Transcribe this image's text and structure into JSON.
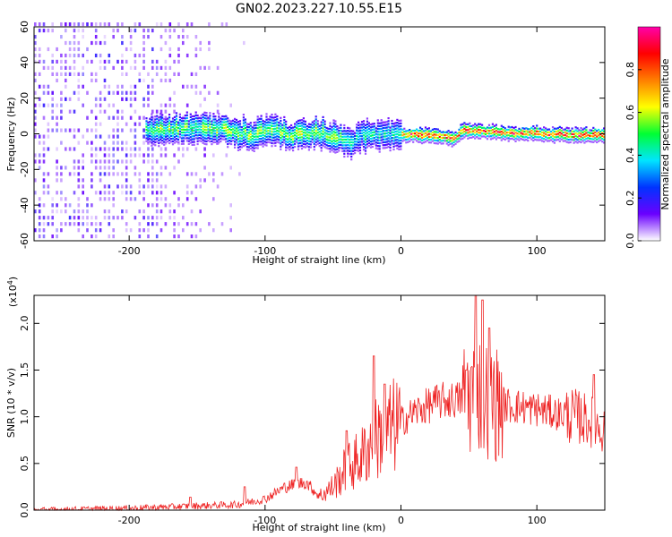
{
  "title": "GN02.2023.227.10.55.E15",
  "chart_data": [
    {
      "type": "heatmap",
      "xlabel": "Height of straight line (km)",
      "ylabel": "Frequency (Hz)",
      "xlim": [
        -270,
        150
      ],
      "ylim": [
        -60,
        60
      ],
      "x_ticks": [
        -200,
        -100,
        0,
        100
      ],
      "y_ticks": [
        -60,
        -40,
        -20,
        0,
        20,
        40,
        60
      ],
      "colorbar": {
        "label": "Normalized spectral amplitude",
        "range": [
          0,
          1
        ],
        "ticks": [
          0.0,
          0.2,
          0.4,
          0.6,
          0.8
        ],
        "colormap": [
          "#ffffff",
          "#6a00ff",
          "#0033ff",
          "#00e5ff",
          "#00ff33",
          "#ffff00",
          "#ff7f00",
          "#ff0000",
          "#ff00aa"
        ]
      },
      "ridge": {
        "x": [
          -185,
          -150,
          -130,
          -110,
          -100,
          -80,
          -60,
          -45,
          -40,
          -30,
          -10,
          0,
          25,
          40,
          45,
          60,
          80,
          100,
          120,
          150
        ],
        "y": [
          2,
          4,
          3,
          0,
          3,
          0,
          1,
          -2,
          -5,
          0,
          0,
          0,
          0,
          -2,
          3,
          2,
          1,
          1,
          0,
          0
        ],
        "noise_floor_x_end": -115
      }
    },
    {
      "type": "line",
      "xlabel": "Height of straight line (km)",
      "ylabel": "SNR (10 * v/v)",
      "y_multiplier": "(x10",
      "y_multiplier_exp": "4",
      "y_multiplier_close": ")",
      "xlim": [
        -270,
        150
      ],
      "ylim": [
        0,
        2.3
      ],
      "x_ticks": [
        -200,
        -100,
        0,
        100
      ],
      "y_ticks": [
        0.0,
        0.5,
        1.0,
        1.5,
        2.0
      ],
      "line_color": "#ee2222",
      "envelope": {
        "x": [
          -270,
          -200,
          -160,
          -120,
          -100,
          -85,
          -70,
          -60,
          -50,
          -40,
          -30,
          -20,
          -10,
          0,
          10,
          20,
          30,
          40,
          48,
          55,
          62,
          70,
          80,
          90,
          100,
          110,
          120,
          130,
          140,
          150
        ],
        "y": [
          0.0,
          0.02,
          0.04,
          0.06,
          0.12,
          0.25,
          0.3,
          0.15,
          0.25,
          0.45,
          0.55,
          0.75,
          0.85,
          0.95,
          1.05,
          1.12,
          1.17,
          1.18,
          1.2,
          1.3,
          1.2,
          1.15,
          1.12,
          1.1,
          1.08,
          1.05,
          1.02,
          1.0,
          0.95,
          0.85
        ]
      },
      "spikes": [
        {
          "x": -155,
          "y": 0.14
        },
        {
          "x": -115,
          "y": 0.25
        },
        {
          "x": -77,
          "y": 0.46
        },
        {
          "x": -40,
          "y": 0.85
        },
        {
          "x": -20,
          "y": 1.65
        },
        {
          "x": -12,
          "y": 1.35
        },
        {
          "x": 48,
          "y": 1.5
        },
        {
          "x": 55,
          "y": 2.3
        },
        {
          "x": 60,
          "y": 2.25
        },
        {
          "x": 65,
          "y": 1.95
        },
        {
          "x": 142,
          "y": 1.45
        }
      ]
    }
  ]
}
